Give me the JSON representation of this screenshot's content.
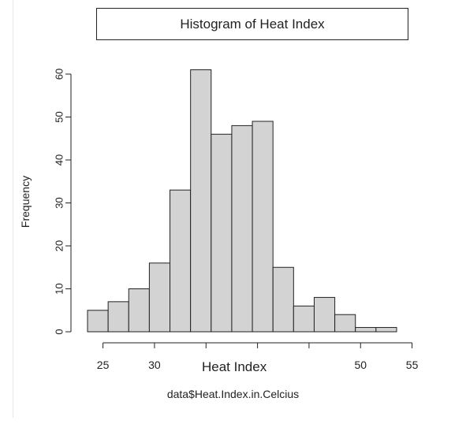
{
  "chart_data": {
    "type": "bar",
    "title": "Histogram of Heat Index",
    "annotation": "Heat Index",
    "xlabel": "data$Heat.Index.in.Celcius",
    "ylabel": "Frequency",
    "bins": [
      {
        "start": 23.5,
        "end": 25.5,
        "count": 5
      },
      {
        "start": 25.5,
        "end": 27.5,
        "count": 7
      },
      {
        "start": 27.5,
        "end": 29.5,
        "count": 10
      },
      {
        "start": 29.5,
        "end": 31.5,
        "count": 16
      },
      {
        "start": 31.5,
        "end": 33.5,
        "count": 33
      },
      {
        "start": 33.5,
        "end": 35.5,
        "count": 61
      },
      {
        "start": 35.5,
        "end": 37.5,
        "count": 46
      },
      {
        "start": 37.5,
        "end": 39.5,
        "count": 48
      },
      {
        "start": 39.5,
        "end": 41.5,
        "count": 49
      },
      {
        "start": 41.5,
        "end": 43.5,
        "count": 15
      },
      {
        "start": 43.5,
        "end": 45.5,
        "count": 6
      },
      {
        "start": 45.5,
        "end": 47.5,
        "count": 8
      },
      {
        "start": 47.5,
        "end": 49.5,
        "count": 4
      },
      {
        "start": 49.5,
        "end": 51.5,
        "count": 1
      },
      {
        "start": 51.5,
        "end": 53.5,
        "count": 1
      }
    ],
    "xticks": [
      {
        "value": 25,
        "label": "25"
      },
      {
        "value": 30,
        "label": "30"
      },
      {
        "value": 35,
        "label": ""
      },
      {
        "value": 40,
        "label": ""
      },
      {
        "value": 45,
        "label": ""
      },
      {
        "value": 50,
        "label": "50"
      },
      {
        "value": 55,
        "label": "55"
      }
    ],
    "yticks": [
      0,
      10,
      20,
      30,
      40,
      50,
      60
    ],
    "ylim": [
      0,
      60
    ],
    "xlim": [
      23.5,
      55
    ],
    "bar_fill": "#d3d3d3",
    "bar_stroke": "#222222"
  }
}
